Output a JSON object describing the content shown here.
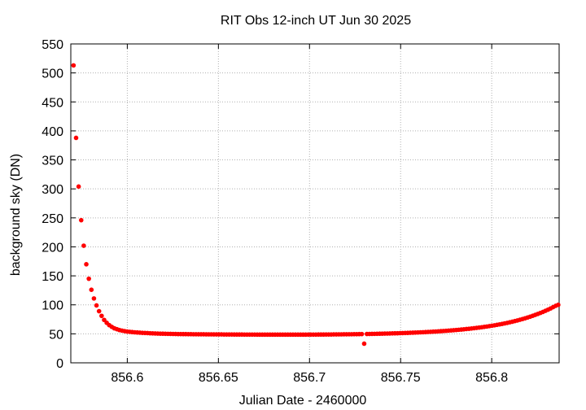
{
  "chart_data": {
    "type": "scatter",
    "title": "RIT Obs 12-inch UT Jun 30 2025",
    "xlabel": "Julian Date - 2460000",
    "ylabel": "background sky (DN)",
    "xlim": [
      856.569,
      856.837
    ],
    "ylim": [
      0,
      550
    ],
    "xticks": [
      856.6,
      856.65,
      856.7,
      856.75,
      856.8
    ],
    "xtick_labels": [
      "856.6",
      "856.65",
      "856.7",
      "856.75",
      "856.8"
    ],
    "yticks": [
      0,
      50,
      100,
      150,
      200,
      250,
      300,
      350,
      400,
      450,
      500,
      550
    ],
    "ytick_labels": [
      "0",
      "50",
      "100",
      "150",
      "200",
      "250",
      "300",
      "350",
      "400",
      "450",
      "500",
      "550"
    ],
    "grid": true,
    "legend": "none",
    "marker_color": "#ff0000",
    "series": [
      {
        "points": [
          [
            856.5705,
            513
          ],
          [
            856.5719,
            388
          ],
          [
            856.5733,
            304
          ],
          [
            856.5747,
            246
          ],
          [
            856.5761,
            202
          ],
          [
            856.5775,
            170
          ],
          [
            856.5789,
            145
          ],
          [
            856.5803,
            126
          ],
          [
            856.5817,
            111
          ],
          [
            856.5831,
            99
          ],
          [
            856.5845,
            89
          ],
          [
            856.5859,
            81
          ],
          [
            856.5873,
            74
          ],
          [
            856.5887,
            69
          ],
          [
            856.5901,
            65
          ],
          [
            856.5915,
            62
          ],
          [
            856.5929,
            59.5
          ],
          [
            856.5943,
            58
          ],
          [
            856.5957,
            56.5
          ],
          [
            856.5971,
            55.5
          ],
          [
            856.5985,
            54.7
          ],
          [
            856.5999,
            54
          ],
          [
            856.6013,
            53.5
          ],
          [
            856.6027,
            53
          ],
          [
            856.6041,
            52.6
          ],
          [
            856.6055,
            52.3
          ],
          [
            856.6069,
            52
          ],
          [
            856.6083,
            51.7
          ],
          [
            856.6097,
            51.5
          ],
          [
            856.6111,
            51.3
          ],
          [
            856.6125,
            51
          ],
          [
            856.6139,
            50.8
          ],
          [
            856.6153,
            50.6
          ],
          [
            856.6167,
            50.4
          ],
          [
            856.6181,
            50.3
          ],
          [
            856.6195,
            50.2
          ],
          [
            856.6209,
            50.1
          ],
          [
            856.6223,
            50
          ],
          [
            856.6237,
            49.9
          ],
          [
            856.6251,
            49.8
          ],
          [
            856.6265,
            49.7
          ],
          [
            856.6279,
            49.6
          ],
          [
            856.6293,
            49.6
          ],
          [
            856.6307,
            49.5
          ],
          [
            856.6321,
            49.5
          ],
          [
            856.6335,
            49.4
          ],
          [
            856.6349,
            49.4
          ],
          [
            856.6363,
            49.3
          ],
          [
            856.6377,
            49.3
          ],
          [
            856.6391,
            49.2
          ],
          [
            856.6405,
            49.2
          ],
          [
            856.6419,
            49.2
          ],
          [
            856.6433,
            49.1
          ],
          [
            856.6447,
            49.1
          ],
          [
            856.6461,
            49.1
          ],
          [
            856.6475,
            49
          ],
          [
            856.6489,
            49
          ],
          [
            856.6503,
            49
          ],
          [
            856.6517,
            49
          ],
          [
            856.6531,
            48.9
          ],
          [
            856.6545,
            48.9
          ],
          [
            856.6559,
            48.9
          ],
          [
            856.6573,
            48.9
          ],
          [
            856.6587,
            48.8
          ],
          [
            856.6601,
            48.8
          ],
          [
            856.6615,
            48.8
          ],
          [
            856.6629,
            48.8
          ],
          [
            856.6643,
            48.7
          ],
          [
            856.6657,
            48.7
          ],
          [
            856.6671,
            48.7
          ],
          [
            856.6685,
            48.7
          ],
          [
            856.6699,
            48.7
          ],
          [
            856.6713,
            48.6
          ],
          [
            856.6727,
            48.6
          ],
          [
            856.6741,
            48.6
          ],
          [
            856.6755,
            48.6
          ],
          [
            856.6769,
            48.6
          ],
          [
            856.6783,
            48.6
          ],
          [
            856.6797,
            48.6
          ],
          [
            856.6811,
            48.6
          ],
          [
            856.6825,
            48.6
          ],
          [
            856.6839,
            48.6
          ],
          [
            856.6853,
            48.6
          ],
          [
            856.6867,
            48.6
          ],
          [
            856.6881,
            48.6
          ],
          [
            856.6895,
            48.6
          ],
          [
            856.6909,
            48.6
          ],
          [
            856.6923,
            48.6
          ],
          [
            856.6937,
            48.6
          ],
          [
            856.6951,
            48.6
          ],
          [
            856.6965,
            48.6
          ],
          [
            856.6979,
            48.6
          ],
          [
            856.6993,
            48.7
          ],
          [
            856.7007,
            48.7
          ],
          [
            856.7021,
            48.7
          ],
          [
            856.7035,
            48.7
          ],
          [
            856.7049,
            48.8
          ],
          [
            856.7063,
            48.8
          ],
          [
            856.7077,
            48.8
          ],
          [
            856.7091,
            48.9
          ],
          [
            856.7105,
            48.9
          ],
          [
            856.7119,
            48.9
          ],
          [
            856.7133,
            49
          ],
          [
            856.7147,
            49
          ],
          [
            856.7161,
            49.1
          ],
          [
            856.7175,
            49.1
          ],
          [
            856.7189,
            49.2
          ],
          [
            856.7203,
            49.2
          ],
          [
            856.7217,
            49.3
          ],
          [
            856.7231,
            49.3
          ],
          [
            856.7245,
            49.4
          ],
          [
            856.7259,
            49.4
          ],
          [
            856.7273,
            49.5
          ],
          [
            856.7287,
            49.6
          ],
          [
            856.73,
            33
          ],
          [
            856.7315,
            49.7
          ],
          [
            856.7329,
            49.8
          ],
          [
            856.7343,
            49.9
          ],
          [
            856.7357,
            50
          ],
          [
            856.7371,
            50.1
          ],
          [
            856.7385,
            50.2
          ],
          [
            856.7399,
            50.3
          ],
          [
            856.7413,
            50.4
          ],
          [
            856.7427,
            50.5
          ],
          [
            856.7441,
            50.6
          ],
          [
            856.7455,
            50.8
          ],
          [
            856.7469,
            50.9
          ],
          [
            856.7483,
            51
          ],
          [
            856.7497,
            51.2
          ],
          [
            856.7511,
            51.3
          ],
          [
            856.7525,
            51.5
          ],
          [
            856.7539,
            51.6
          ],
          [
            856.7553,
            51.8
          ],
          [
            856.7567,
            52
          ],
          [
            856.7581,
            52.2
          ],
          [
            856.7595,
            52.4
          ],
          [
            856.7609,
            52.6
          ],
          [
            856.7623,
            52.8
          ],
          [
            856.7637,
            53
          ],
          [
            856.7651,
            53.3
          ],
          [
            856.7665,
            53.5
          ],
          [
            856.7679,
            53.8
          ],
          [
            856.7693,
            54
          ],
          [
            856.7707,
            54.3
          ],
          [
            856.7721,
            54.6
          ],
          [
            856.7735,
            54.9
          ],
          [
            856.7749,
            55.2
          ],
          [
            856.7763,
            55.5
          ],
          [
            856.7777,
            55.9
          ],
          [
            856.7791,
            56.2
          ],
          [
            856.7805,
            56.6
          ],
          [
            856.7819,
            57
          ],
          [
            856.7833,
            57.4
          ],
          [
            856.7847,
            57.8
          ],
          [
            856.7861,
            58.3
          ],
          [
            856.7875,
            58.7
          ],
          [
            856.7889,
            59.2
          ],
          [
            856.7903,
            59.7
          ],
          [
            856.7917,
            60.3
          ],
          [
            856.7931,
            60.8
          ],
          [
            856.7945,
            61.4
          ],
          [
            856.7959,
            62
          ],
          [
            856.7973,
            62.6
          ],
          [
            856.7987,
            63.3
          ],
          [
            856.8001,
            64
          ],
          [
            856.8015,
            64.7
          ],
          [
            856.8029,
            65.5
          ],
          [
            856.8043,
            66.3
          ],
          [
            856.8057,
            67.1
          ],
          [
            856.8071,
            68
          ],
          [
            856.8085,
            68.9
          ],
          [
            856.8099,
            69.9
          ],
          [
            856.8113,
            70.9
          ],
          [
            856.8127,
            72
          ],
          [
            856.8141,
            73.1
          ],
          [
            856.8155,
            74.3
          ],
          [
            856.8169,
            75.5
          ],
          [
            856.8183,
            76.8
          ],
          [
            856.8197,
            78.2
          ],
          [
            856.8211,
            79.6
          ],
          [
            856.8225,
            81.1
          ],
          [
            856.8239,
            82.7
          ],
          [
            856.8253,
            84.3
          ],
          [
            856.8267,
            86
          ],
          [
            856.8281,
            87.8
          ],
          [
            856.8295,
            89.7
          ],
          [
            856.8309,
            91.7
          ],
          [
            856.8323,
            93.8
          ],
          [
            856.8337,
            96
          ],
          [
            856.8351,
            98.3
          ],
          [
            856.8365,
            100
          ]
        ]
      }
    ]
  }
}
